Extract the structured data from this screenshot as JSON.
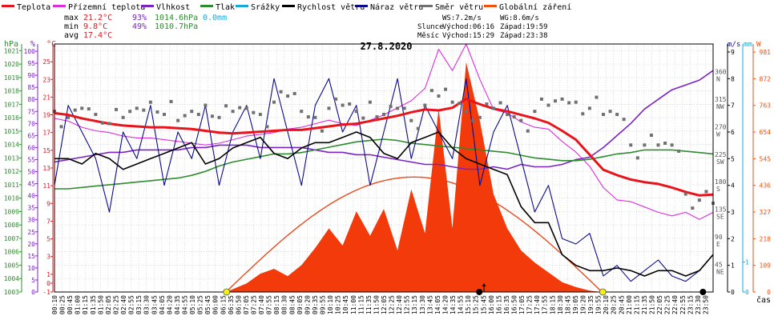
{
  "legend": [
    {
      "label": "Teplota",
      "color": "#e8141c"
    },
    {
      "label": "Přízemní teplota",
      "color": "#dd2ddd"
    },
    {
      "label": "Vlhkost",
      "color": "#7a22c4"
    },
    {
      "label": "Tlak",
      "color": "#2e8b2e"
    },
    {
      "label": "Srážky",
      "color": "#1aa8d8"
    },
    {
      "label": "Rychlost větru",
      "color": "#000000"
    },
    {
      "label": "Náraz větru",
      "color": "#0a0a8c"
    },
    {
      "label": "Směr větru",
      "color": "#707070"
    },
    {
      "label": "Globální záření",
      "color": "#f05010"
    }
  ],
  "stats": {
    "max": {
      "label": "max",
      "temp": "21.2°C",
      "hum": "93%",
      "pres": "1014.6hPa",
      "rain": "0.0mm"
    },
    "min": {
      "label": "min",
      "temp": "9.8°C",
      "hum": "49%",
      "pres": "1010.7hPa"
    },
    "avg": {
      "label": "avg",
      "temp": "17.4°C"
    }
  },
  "astro": {
    "ws": "WS:7.2m/s",
    "wg": "WG:8.6m/s",
    "sun_label": "Slunce",
    "sun_rise": "Východ:06:16",
    "sun_set": "Západ:19:59",
    "moon_label": "Měsíc",
    "moon_rise": "Východ:15:29",
    "moon_set": "Západ:23:38"
  },
  "title": "27.8.2020",
  "xaxis_label": "čas",
  "colors": {
    "temp": "#e8141c",
    "feel": "#dd2ddd",
    "hum": "#7a22c4",
    "pres": "#2e8b2e",
    "rain": "#1aa8d8",
    "speed": "#000000",
    "gust": "#0a0a8c",
    "dir": "#707070",
    "solar": "#f23a0a",
    "clearsky": "#e84a1a",
    "grid": "#c8c8c8",
    "sun": "#f2f20a"
  },
  "chart_data": {
    "type": "line",
    "x_ticks": [
      "00:10",
      "00:25",
      "00:45",
      "01:00",
      "01:15",
      "01:35",
      "01:50",
      "02:05",
      "02:25",
      "02:40",
      "02:55",
      "03:15",
      "03:30",
      "03:45",
      "04:05",
      "04:20",
      "04:35",
      "04:55",
      "05:10",
      "05:25",
      "05:45",
      "06:00",
      "06:15",
      "06:35",
      "06:50",
      "07:05",
      "07:25",
      "07:40",
      "07:55",
      "08:15",
      "08:30",
      "08:45",
      "09:05",
      "09:20",
      "09:35",
      "09:55",
      "10:10",
      "10:25",
      "10:45",
      "11:00",
      "11:15",
      "11:35",
      "11:50",
      "12:05",
      "12:25",
      "12:40",
      "12:55",
      "13:15",
      "13:30",
      "13:45",
      "14:05",
      "14:20",
      "14:35",
      "14:55",
      "15:10",
      "15:25",
      "15:45",
      "16:00",
      "16:15",
      "16:35",
      "16:50",
      "17:05",
      "17:25",
      "17:40",
      "17:55",
      "18:15",
      "18:30",
      "18:45",
      "19:05",
      "19:20",
      "19:35",
      "19:55",
      "20:10",
      "20:25",
      "20:45",
      "21:00",
      "21:15",
      "21:35",
      "21:50",
      "22:05",
      "22:25",
      "22:40",
      "22:55",
      "23:15",
      "23:30",
      "23:50"
    ],
    "axes": {
      "hpa": {
        "label": "hPa",
        "ticks": [
          1003,
          1004,
          1005,
          1006,
          1007,
          1008,
          1009,
          1010,
          1011,
          1012,
          1013,
          1014,
          1015,
          1016,
          1017,
          1018,
          1019,
          1020,
          1021
        ],
        "range": [
          1003,
          1021.5
        ]
      },
      "pct": {
        "label": "%",
        "ticks": [
          0,
          5,
          10,
          15,
          20,
          25,
          30,
          35,
          40,
          45,
          50,
          55,
          60,
          65,
          70,
          75,
          80,
          85,
          90,
          95,
          100
        ],
        "range": [
          0,
          103
        ]
      },
      "temp": {
        "label": "°C",
        "ticks": [
          -1,
          0,
          1,
          3,
          5,
          7,
          9,
          11,
          13,
          15,
          17,
          19,
          21,
          23,
          25
        ],
        "range": [
          -1,
          27
        ]
      },
      "wind": {
        "label": "m/s",
        "ticks": [
          0,
          1,
          2,
          3,
          4,
          5,
          6,
          7,
          8,
          9
        ],
        "range": [
          0,
          9.3
        ]
      },
      "rain": {
        "label": "mm",
        "ticks": [
          0,
          1
        ],
        "range": [
          0,
          1
        ]
      },
      "solar": {
        "label": "W",
        "ticks": [
          0,
          109,
          218,
          327,
          436,
          545,
          654,
          763,
          872,
          981
        ],
        "range": [
          0,
          1014
        ]
      },
      "dir": {
        "ticks": [
          "45 NE",
          "90 E",
          "135 SE",
          "180 S",
          "225 SW",
          "270 W",
          "315 NW",
          "360 N"
        ],
        "values": [
          45,
          90,
          135,
          180,
          225,
          270,
          315,
          360
        ]
      }
    },
    "series": [
      {
        "name": "Teplota",
        "unit": "°C",
        "x_hours": [
          0,
          0.5,
          1,
          1.5,
          2,
          2.5,
          3,
          3.5,
          4,
          4.5,
          5,
          5.5,
          6,
          6.5,
          7,
          7.5,
          8,
          8.5,
          9,
          9.5,
          10,
          10.5,
          11,
          11.5,
          12,
          12.5,
          13,
          13.5,
          14,
          14.5,
          15,
          15.5,
          16,
          16.5,
          17,
          17.5,
          18,
          18.5,
          19,
          19.5,
          20,
          20.5,
          21,
          21.5,
          22,
          22.5,
          23,
          23.5,
          24
        ],
        "values": [
          19.2,
          19.0,
          18.6,
          18.3,
          18.0,
          17.8,
          17.7,
          17.6,
          17.6,
          17.5,
          17.4,
          17.2,
          17.0,
          16.9,
          17.0,
          17.1,
          17.2,
          17.3,
          17.3,
          17.5,
          17.7,
          17.9,
          18.0,
          18.3,
          18.6,
          18.9,
          19.3,
          19.6,
          19.5,
          19.8,
          20.8,
          20.2,
          19.7,
          19.4,
          19.0,
          18.6,
          18.1,
          17.2,
          16.2,
          14.5,
          12.8,
          12.2,
          11.7,
          11.4,
          11.2,
          10.8,
          10.3,
          9.9,
          10.0
        ]
      },
      {
        "name": "Přízemní teplota",
        "unit": "°C",
        "x_hours": [
          0,
          0.5,
          1,
          1.5,
          2,
          2.5,
          3,
          3.5,
          4,
          4.5,
          5,
          5.5,
          6,
          6.5,
          7,
          7.5,
          8,
          8.5,
          9,
          9.5,
          10,
          10.5,
          11,
          11.5,
          12,
          12.5,
          13,
          13.5,
          14,
          14.5,
          15,
          15.5,
          16,
          16.5,
          17,
          17.5,
          18,
          18.5,
          19,
          19.5,
          20,
          20.5,
          21,
          21.5,
          22,
          22.5,
          23,
          23.5,
          24
        ],
        "values": [
          18.6,
          18.3,
          17.6,
          17.2,
          17.0,
          16.6,
          16.4,
          16.4,
          16.2,
          16.0,
          15.8,
          15.6,
          15.8,
          16.2,
          16.6,
          16.8,
          17.0,
          17.4,
          17.6,
          18.0,
          18.4,
          18.0,
          17.8,
          18.4,
          19.0,
          19.8,
          20.6,
          22.0,
          26.4,
          24.0,
          27.0,
          23.0,
          19.6,
          19.2,
          18.2,
          17.6,
          17.4,
          16.0,
          14.8,
          13.2,
          10.8,
          9.4,
          9.2,
          8.6,
          8.0,
          7.6,
          8.0,
          7.2,
          8.0
        ]
      },
      {
        "name": "Vlhkost",
        "unit": "%",
        "x_hours": [
          0,
          0.5,
          1,
          1.5,
          2,
          2.5,
          3,
          3.5,
          4,
          4.5,
          5,
          5.5,
          6,
          6.5,
          7,
          7.5,
          8,
          8.5,
          9,
          9.5,
          10,
          10.5,
          11,
          11.5,
          12,
          12.5,
          13,
          13.5,
          14,
          14.5,
          15,
          15.5,
          16,
          16.5,
          17,
          17.5,
          18,
          18.5,
          19,
          19.5,
          20,
          20.5,
          21,
          21.5,
          22,
          22.5,
          23,
          23.5,
          24
        ],
        "values": [
          54,
          55,
          56,
          57,
          58,
          58,
          59,
          59,
          59,
          59,
          60,
          60,
          61,
          61,
          61,
          60,
          60,
          60,
          60,
          59,
          58,
          58,
          57,
          57,
          56,
          55,
          54,
          53,
          53,
          52,
          51,
          51,
          52,
          51,
          53,
          52,
          52,
          53,
          55,
          56,
          60,
          65,
          70,
          76,
          80,
          84,
          86,
          88,
          92
        ]
      },
      {
        "name": "Tlak",
        "unit": "hPa",
        "x_hours": [
          0,
          0.5,
          1,
          1.5,
          2,
          2.5,
          3,
          3.5,
          4,
          4.5,
          5,
          5.5,
          6,
          6.5,
          7,
          7.5,
          8,
          8.5,
          9,
          9.5,
          10,
          10.5,
          11,
          11.5,
          12,
          12.5,
          13,
          13.5,
          14,
          14.5,
          15,
          15.5,
          16,
          16.5,
          17,
          17.5,
          18,
          18.5,
          19,
          19.5,
          20,
          20.5,
          21,
          21.5,
          22,
          22.5,
          23,
          23.5,
          24
        ],
        "values": [
          1010.7,
          1010.7,
          1010.8,
          1010.9,
          1011.0,
          1011.1,
          1011.2,
          1011.3,
          1011.4,
          1011.5,
          1011.7,
          1012.0,
          1012.4,
          1012.7,
          1012.9,
          1013.1,
          1013.3,
          1013.3,
          1013.4,
          1013.6,
          1013.8,
          1014.0,
          1014.2,
          1014.3,
          1014.4,
          1014.3,
          1014.1,
          1014.0,
          1013.9,
          1013.8,
          1013.7,
          1013.6,
          1013.5,
          1013.4,
          1013.2,
          1013.0,
          1012.9,
          1012.8,
          1012.8,
          1012.9,
          1013.1,
          1013.3,
          1013.4,
          1013.6,
          1013.6,
          1013.6,
          1013.5,
          1013.4,
          1013.3
        ]
      },
      {
        "name": "Rychlost větru",
        "unit": "m/s",
        "x_hours": [
          0,
          0.5,
          1,
          1.5,
          2,
          2.5,
          3,
          3.5,
          4,
          4.5,
          5,
          5.5,
          6,
          6.5,
          7,
          7.5,
          8,
          8.5,
          9,
          9.5,
          10,
          10.5,
          11,
          11.5,
          12,
          12.5,
          13,
          13.5,
          14,
          14.5,
          15,
          15.5,
          16,
          16.5,
          17,
          17.5,
          18,
          18.5,
          19,
          19.5,
          20,
          20.5,
          21,
          21.5,
          22,
          22.5,
          23,
          23.5,
          24
        ],
        "values": [
          5,
          5,
          4.8,
          5.2,
          5,
          4.6,
          4.8,
          5,
          5.2,
          5.4,
          5.6,
          4.8,
          5,
          5.4,
          5.6,
          5.8,
          5.2,
          5,
          5.4,
          5.6,
          5.6,
          5.8,
          6,
          5.8,
          5.2,
          5,
          5.6,
          5.8,
          6,
          5.4,
          5,
          4.8,
          4.6,
          4.4,
          3.2,
          2.6,
          2.6,
          1.4,
          1.0,
          0.8,
          0.8,
          0.9,
          0.8,
          0.6,
          0.8,
          0.8,
          0.6,
          0.8,
          1.4
        ]
      },
      {
        "name": "Náraz větru",
        "unit": "m/s",
        "x_hours": [
          0,
          0.5,
          1,
          1.5,
          2,
          2.5,
          3,
          3.5,
          4,
          4.5,
          5,
          5.5,
          6,
          6.5,
          7,
          7.5,
          8,
          8.5,
          9,
          9.5,
          10,
          10.5,
          11,
          11.5,
          12,
          12.5,
          13,
          13.5,
          14,
          14.5,
          15,
          15.5,
          16,
          16.5,
          17,
          17.5,
          18,
          18.5,
          19,
          19.5,
          20,
          20.5,
          21,
          21.5,
          22,
          22.5,
          23,
          23.5,
          24
        ],
        "values": [
          4,
          7,
          6,
          5,
          3,
          6,
          5,
          7,
          4,
          6,
          5,
          7,
          4,
          6,
          7,
          5,
          8,
          6,
          4,
          7,
          8,
          6,
          7,
          4,
          6,
          8,
          5,
          7,
          6,
          5,
          8,
          4,
          6,
          7,
          5,
          3,
          4,
          2,
          1.8,
          2.2,
          0.6,
          1,
          0.4,
          0.8,
          1.2,
          0.6,
          0.4,
          0.8,
          1.4
        ]
      },
      {
        "name": "Směr větru",
        "unit": "°",
        "x_hours": [
          0,
          0.5,
          1,
          1.5,
          2,
          2.5,
          3,
          3.5,
          4,
          4.5,
          5,
          5.5,
          6,
          6.5,
          7,
          7.5,
          8,
          8.5,
          9,
          9.5,
          10,
          10.5,
          11,
          11.5,
          12,
          12.5,
          13,
          13.5,
          14,
          14.5,
          15,
          15.5,
          16,
          16.5,
          17,
          17.5,
          18,
          18.5,
          19,
          19.5,
          20,
          20.5,
          21,
          21.5,
          22,
          22.5,
          23,
          23.5,
          24
        ],
        "values": [
          295,
          285,
          300,
          290,
          275,
          285,
          300,
          310,
          290,
          280,
          295,
          305,
          285,
          295,
          300,
          290,
          310,
          320,
          295,
          285,
          300,
          305,
          295,
          310,
          290,
          300,
          280,
          305,
          320,
          310,
          295,
          285,
          300,
          290,
          280,
          295,
          305,
          315,
          310,
          300,
          290,
          290,
          240,
          240,
          240,
          240,
          160,
          150,
          145
        ]
      },
      {
        "name": "Globální záření",
        "unit": "W",
        "x_hours": [
          6.25,
          7,
          7.5,
          8,
          8.5,
          9,
          9.5,
          10,
          10.5,
          11,
          11.5,
          12,
          12.5,
          13,
          13.5,
          14,
          14.5,
          15,
          15.5,
          16,
          16.5,
          17,
          17.5,
          18,
          18.5,
          19,
          19.5,
          19.9
        ],
        "values": [
          0,
          35,
          75,
          95,
          65,
          110,
          180,
          260,
          190,
          330,
          230,
          340,
          170,
          420,
          240,
          750,
          260,
          940,
          700,
          400,
          260,
          170,
          120,
          80,
          40,
          20,
          6,
          0
        ]
      },
      {
        "name": "Srážky",
        "unit": "mm",
        "x_hours": [
          0,
          24
        ],
        "values": [
          0,
          0
        ]
      }
    ]
  }
}
